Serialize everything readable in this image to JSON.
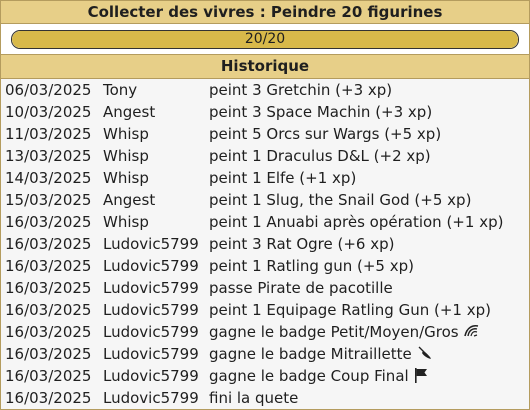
{
  "quest": {
    "title": "Collecter des vivres : Peindre 20 figurines",
    "progress_label": "20/20",
    "progress_fraction": 1.0
  },
  "history": {
    "heading": "Historique",
    "rows": [
      {
        "date": "06/03/2025",
        "user": "Tony",
        "action": "peint 3 Gretchin (+3 xp)",
        "icon": ""
      },
      {
        "date": "10/03/2025",
        "user": "Angest",
        "action": "peint 3 Space Machin (+3 xp)",
        "icon": ""
      },
      {
        "date": "11/03/2025",
        "user": "Whisp",
        "action": "peint 5 Orcs sur Wargs (+5 xp)",
        "icon": ""
      },
      {
        "date": "13/03/2025",
        "user": "Whisp",
        "action": "peint 1 Draculus D&L (+2 xp)",
        "icon": ""
      },
      {
        "date": "14/03/2025",
        "user": "Whisp",
        "action": "peint 1 Elfe (+1 xp)",
        "icon": ""
      },
      {
        "date": "15/03/2025",
        "user": "Angest",
        "action": "peint 1 Slug, the Snail God (+5 xp)",
        "icon": ""
      },
      {
        "date": "16/03/2025",
        "user": "Whisp",
        "action": "peint 1 Anuabi après opération (+1 xp)",
        "icon": ""
      },
      {
        "date": "16/03/2025",
        "user": "Ludovic5799",
        "action": "peint 3 Rat Ogre (+6 xp)",
        "icon": ""
      },
      {
        "date": "16/03/2025",
        "user": "Ludovic5799",
        "action": "peint 1 Ratling gun (+5 xp)",
        "icon": ""
      },
      {
        "date": "16/03/2025",
        "user": "Ludovic5799",
        "action": "passe Pirate de pacotille",
        "icon": ""
      },
      {
        "date": "16/03/2025",
        "user": "Ludovic5799",
        "action": "peint 1 Equipage Ratling Gun (+1 xp)",
        "icon": ""
      },
      {
        "date": "16/03/2025",
        "user": "Ludovic5799",
        "action": "gagne le badge Petit/Moyen/Gros",
        "icon": "size-waves-icon"
      },
      {
        "date": "16/03/2025",
        "user": "Ludovic5799",
        "action": "gagne le badge Mitraillette",
        "icon": "quill-icon"
      },
      {
        "date": "16/03/2025",
        "user": "Ludovic5799",
        "action": "gagne le badge Coup Final",
        "icon": "flag-icon"
      },
      {
        "date": "16/03/2025",
        "user": "Ludovic5799",
        "action": "fini la quete",
        "icon": ""
      }
    ]
  }
}
